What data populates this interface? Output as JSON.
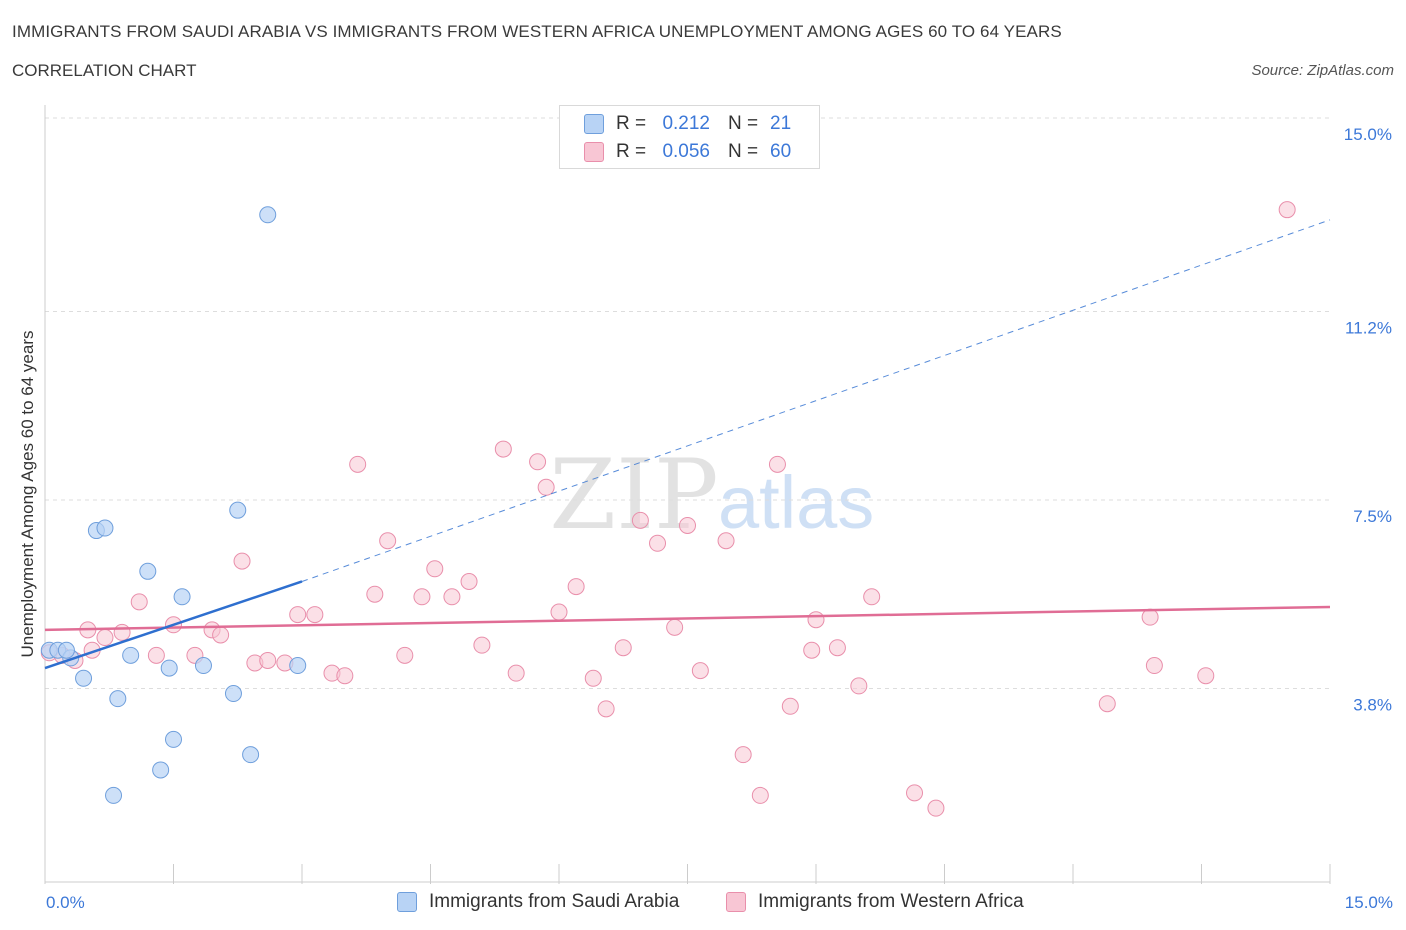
{
  "header": {
    "title": "IMMIGRANTS FROM SAUDI ARABIA VS IMMIGRANTS FROM WESTERN AFRICA UNEMPLOYMENT AMONG AGES 60 TO 64 YEARS",
    "subtitle": "CORRELATION CHART",
    "source": "Source: ZipAtlas.com"
  },
  "legend": {
    "rows": [
      {
        "r_label": "R =",
        "r_value": "0.212",
        "n_label": "N =",
        "n_value": "21"
      },
      {
        "r_label": "R =",
        "r_value": "0.056",
        "n_label": "N =",
        "n_value": "60"
      }
    ]
  },
  "bottom_legend": {
    "series1": "Immigrants from Saudi Arabia",
    "series2": "Immigrants from Western Africa"
  },
  "watermark": {
    "zip": "ZIP",
    "atlas": "atlas"
  },
  "colors": {
    "blue_fill": "#b8d3f5",
    "blue_stroke": "#6f9fdc",
    "blue_line": "#2e6fcf",
    "pink_fill": "#f8c6d4",
    "pink_stroke": "#e98fab",
    "pink_line": "#e06d95",
    "axis_label": "#3c78d8",
    "grid": "#dddddd"
  },
  "chart_data": {
    "type": "scatter",
    "title": "IMMIGRANTS FROM SAUDI ARABIA VS IMMIGRANTS FROM WESTERN AFRICA UNEMPLOYMENT AMONG AGES 60 TO 64 YEARS",
    "subtitle": "CORRELATION CHART",
    "xlabel": "",
    "ylabel": "Unemployment Among Ages 60 to 64 years",
    "xlim": [
      0,
      15
    ],
    "ylim": [
      0,
      15
    ],
    "x_tick_labels": [
      "0.0%",
      "15.0%"
    ],
    "y_ticks": [
      3.8,
      7.5,
      11.2,
      15.0
    ],
    "y_tick_labels": [
      "3.8%",
      "7.5%",
      "11.2%",
      "15.0%"
    ],
    "grid": true,
    "legend_position": "top-center",
    "series": [
      {
        "name": "Immigrants from Saudi Arabia",
        "R": 0.212,
        "N": 21,
        "trend": {
          "x": [
            0.0,
            3.0
          ],
          "y": [
            4.2,
            5.9
          ],
          "style": "solid"
        },
        "trend_extension": {
          "x": [
            3.0,
            15.0
          ],
          "y": [
            5.9,
            13.0
          ],
          "style": "dashed"
        },
        "points": [
          {
            "x": 0.05,
            "y": 4.55
          },
          {
            "x": 0.15,
            "y": 4.55
          },
          {
            "x": 0.3,
            "y": 4.4
          },
          {
            "x": 0.45,
            "y": 4.0
          },
          {
            "x": 0.6,
            "y": 6.9
          },
          {
            "x": 0.8,
            "y": 1.7
          },
          {
            "x": 0.85,
            "y": 3.6
          },
          {
            "x": 1.0,
            "y": 4.45
          },
          {
            "x": 0.7,
            "y": 6.95
          },
          {
            "x": 1.2,
            "y": 6.1
          },
          {
            "x": 1.35,
            "y": 2.2
          },
          {
            "x": 1.5,
            "y": 2.8
          },
          {
            "x": 1.6,
            "y": 5.6
          },
          {
            "x": 1.85,
            "y": 4.25
          },
          {
            "x": 2.2,
            "y": 3.7
          },
          {
            "x": 2.25,
            "y": 7.3
          },
          {
            "x": 2.4,
            "y": 2.5
          },
          {
            "x": 2.6,
            "y": 13.1
          },
          {
            "x": 2.95,
            "y": 4.25
          },
          {
            "x": 0.25,
            "y": 4.55
          },
          {
            "x": 1.45,
            "y": 4.2
          }
        ]
      },
      {
        "name": "Immigrants from Western Africa",
        "R": 0.056,
        "N": 60,
        "trend": {
          "x": [
            0.0,
            15.0
          ],
          "y": [
            4.95,
            5.4
          ],
          "style": "solid"
        },
        "points": [
          {
            "x": 0.05,
            "y": 4.5
          },
          {
            "x": 0.2,
            "y": 4.45
          },
          {
            "x": 0.35,
            "y": 4.35
          },
          {
            "x": 0.5,
            "y": 4.95
          },
          {
            "x": 0.55,
            "y": 4.55
          },
          {
            "x": 0.7,
            "y": 4.8
          },
          {
            "x": 0.9,
            "y": 4.9
          },
          {
            "x": 1.1,
            "y": 5.5
          },
          {
            "x": 1.3,
            "y": 4.45
          },
          {
            "x": 1.5,
            "y": 5.05
          },
          {
            "x": 1.75,
            "y": 4.45
          },
          {
            "x": 1.95,
            "y": 4.95
          },
          {
            "x": 2.05,
            "y": 4.85
          },
          {
            "x": 2.3,
            "y": 6.3
          },
          {
            "x": 2.45,
            "y": 4.3
          },
          {
            "x": 2.6,
            "y": 4.35
          },
          {
            "x": 2.8,
            "y": 4.3
          },
          {
            "x": 2.95,
            "y": 5.25
          },
          {
            "x": 3.15,
            "y": 5.25
          },
          {
            "x": 3.35,
            "y": 4.1
          },
          {
            "x": 3.5,
            "y": 4.05
          },
          {
            "x": 3.65,
            "y": 8.2
          },
          {
            "x": 3.85,
            "y": 5.65
          },
          {
            "x": 4.0,
            "y": 6.7
          },
          {
            "x": 4.2,
            "y": 4.45
          },
          {
            "x": 4.4,
            "y": 5.6
          },
          {
            "x": 4.55,
            "y": 6.15
          },
          {
            "x": 4.75,
            "y": 5.6
          },
          {
            "x": 4.95,
            "y": 5.9
          },
          {
            "x": 5.1,
            "y": 4.65
          },
          {
            "x": 5.35,
            "y": 8.5
          },
          {
            "x": 5.5,
            "y": 4.1
          },
          {
            "x": 5.75,
            "y": 8.25
          },
          {
            "x": 5.85,
            "y": 7.75
          },
          {
            "x": 6.0,
            "y": 5.3
          },
          {
            "x": 6.2,
            "y": 5.8
          },
          {
            "x": 6.4,
            "y": 4.0
          },
          {
            "x": 6.55,
            "y": 3.4
          },
          {
            "x": 6.75,
            "y": 4.6
          },
          {
            "x": 6.95,
            "y": 7.1
          },
          {
            "x": 7.15,
            "y": 6.65
          },
          {
            "x": 7.35,
            "y": 5.0
          },
          {
            "x": 7.5,
            "y": 7.0
          },
          {
            "x": 7.65,
            "y": 4.15
          },
          {
            "x": 7.95,
            "y": 6.7
          },
          {
            "x": 8.15,
            "y": 2.5
          },
          {
            "x": 8.35,
            "y": 1.7
          },
          {
            "x": 8.55,
            "y": 8.2
          },
          {
            "x": 8.7,
            "y": 3.45
          },
          {
            "x": 8.95,
            "y": 4.55
          },
          {
            "x": 9.0,
            "y": 5.15
          },
          {
            "x": 9.25,
            "y": 4.6
          },
          {
            "x": 9.5,
            "y": 3.85
          },
          {
            "x": 9.65,
            "y": 5.6
          },
          {
            "x": 10.15,
            "y": 1.75
          },
          {
            "x": 10.4,
            "y": 1.45
          },
          {
            "x": 12.4,
            "y": 3.5
          },
          {
            "x": 12.9,
            "y": 5.2
          },
          {
            "x": 12.95,
            "y": 4.25
          },
          {
            "x": 13.55,
            "y": 4.05
          },
          {
            "x": 14.5,
            "y": 13.2
          }
        ]
      }
    ]
  }
}
